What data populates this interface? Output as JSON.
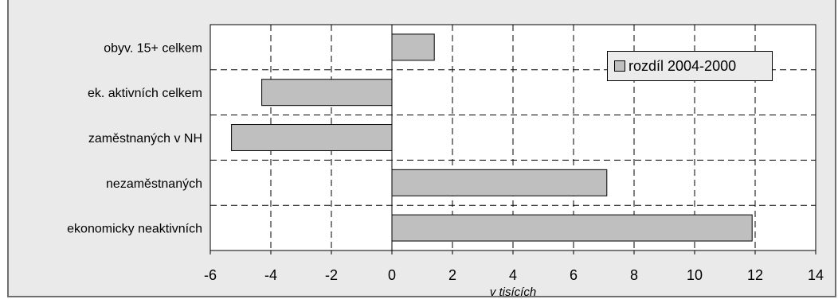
{
  "chart_data": {
    "type": "bar",
    "orientation": "horizontal",
    "categories": [
      "obyv. 15+ celkem",
      "ek. aktivních celkem",
      "zaměstnaných v NH",
      "nezaměstnaných",
      "ekonomicky neaktivních"
    ],
    "series": [
      {
        "name": "rozdíl 2004-2000",
        "values": [
          1.4,
          -4.3,
          -5.3,
          7.1,
          11.9
        ]
      }
    ],
    "xlabel": "v tisících",
    "xlim": [
      -6,
      14
    ],
    "xticks": [
      "-6",
      "-4",
      "-2",
      "0",
      "2",
      "4",
      "6",
      "8",
      "10",
      "12",
      "14"
    ],
    "grid": true,
    "legend_position": "top-right",
    "colors": {
      "bar": "#bfbfbf",
      "bar_border": "#000000",
      "plot_bg": "#ffffff",
      "frame_bg": "#eaeaea"
    }
  }
}
